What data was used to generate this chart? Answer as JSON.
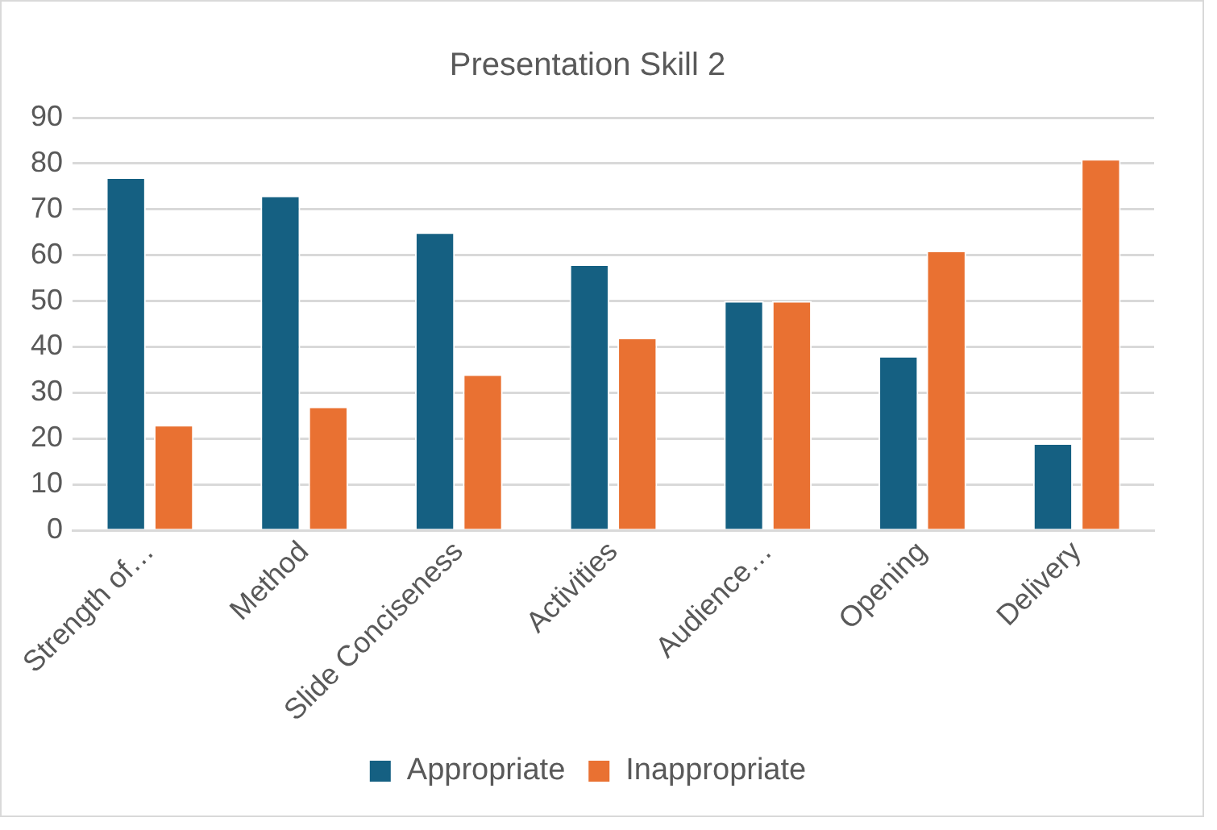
{
  "chart_data": {
    "type": "bar",
    "title": "Presentation Skill 2",
    "categories": [
      "Strength of…",
      "Method",
      "Slide Conciseness",
      "Activities",
      "Audience…",
      "Opening",
      "Delivery"
    ],
    "series": [
      {
        "name": "Appropriate",
        "color": "#156082",
        "values": [
          77,
          73,
          65,
          58,
          50,
          38,
          19
        ]
      },
      {
        "name": "Inappropriate",
        "color": "#e97132",
        "values": [
          23,
          27,
          34,
          42,
          50,
          61,
          81
        ]
      }
    ],
    "ylim": [
      0,
      90
    ],
    "yticks": [
      0,
      10,
      20,
      30,
      40,
      50,
      60,
      70,
      80,
      90
    ],
    "grid": "y",
    "legend": "bottom"
  }
}
